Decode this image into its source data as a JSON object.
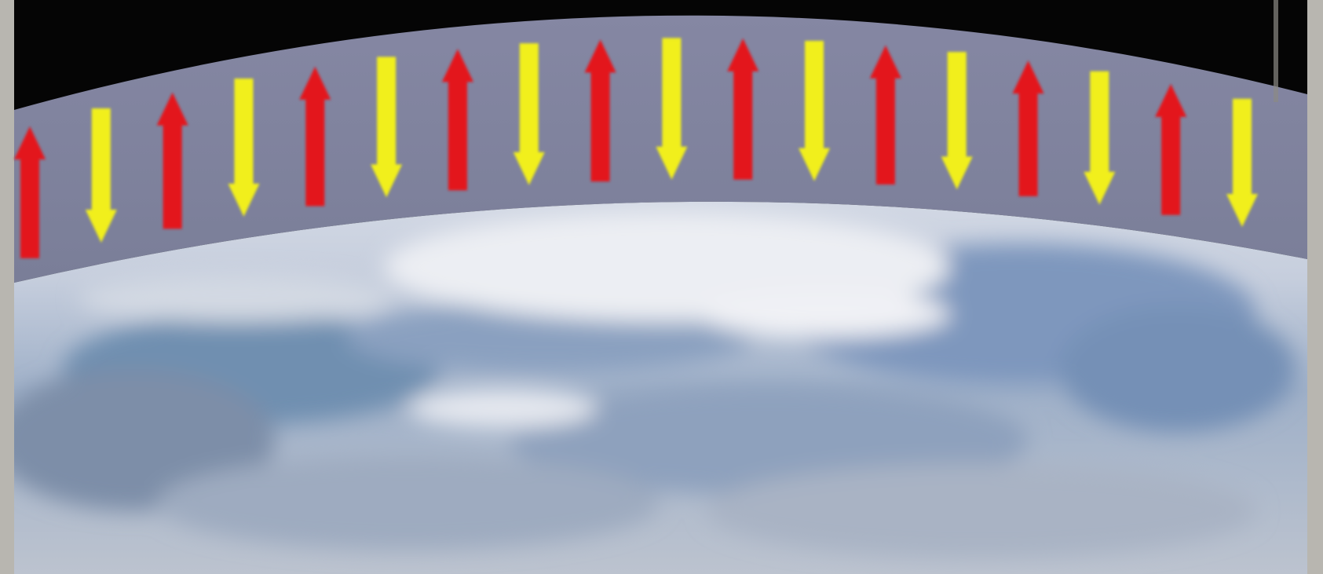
{
  "figure": {
    "description_free": true,
    "colors": {
      "space": "#050505",
      "atmosphere_band": "#7d7f9c",
      "earth_haze": "#b9c0d0",
      "earth_blue": "#7f95b5",
      "earth_cloud": "#e4e7ee",
      "upward_arrow": "#e3141c",
      "downward_arrow": "#f1ef1a",
      "frame_edge": "#d8d6cf"
    },
    "arrows": [
      {
        "direction": "up",
        "color_key": "upward_arrow"
      },
      {
        "direction": "down",
        "color_key": "downward_arrow"
      },
      {
        "direction": "up",
        "color_key": "upward_arrow"
      },
      {
        "direction": "down",
        "color_key": "downward_arrow"
      },
      {
        "direction": "up",
        "color_key": "upward_arrow"
      },
      {
        "direction": "down",
        "color_key": "downward_arrow"
      },
      {
        "direction": "up",
        "color_key": "upward_arrow"
      },
      {
        "direction": "down",
        "color_key": "downward_arrow"
      },
      {
        "direction": "up",
        "color_key": "upward_arrow"
      },
      {
        "direction": "down",
        "color_key": "downward_arrow"
      },
      {
        "direction": "up",
        "color_key": "upward_arrow"
      },
      {
        "direction": "down",
        "color_key": "downward_arrow"
      },
      {
        "direction": "up",
        "color_key": "upward_arrow"
      },
      {
        "direction": "down",
        "color_key": "downward_arrow"
      },
      {
        "direction": "up",
        "color_key": "upward_arrow"
      },
      {
        "direction": "down",
        "color_key": "downward_arrow"
      },
      {
        "direction": "up",
        "color_key": "upward_arrow"
      },
      {
        "direction": "down",
        "color_key": "downward_arrow"
      }
    ]
  }
}
